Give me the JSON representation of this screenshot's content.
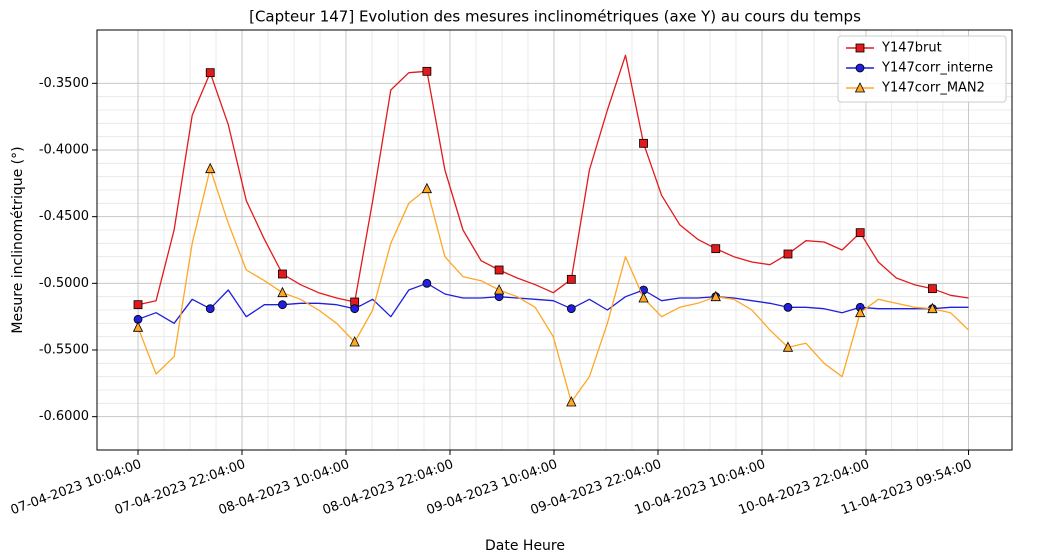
{
  "chart_data": {
    "type": "line",
    "title": "[Capteur 147] Evolution des mesures inclinométriques (axe Y) au cours du temps",
    "xlabel": "Date Heure",
    "ylabel": "Mesure inclinométrique (°)",
    "x": [
      "2023-04-07T10:04",
      "2023-04-07T12:09",
      "2023-04-07T14:14",
      "2023-04-07T16:19",
      "2023-04-07T18:24",
      "2023-04-07T20:29",
      "2023-04-07T22:34",
      "2023-04-08T00:39",
      "2023-04-08T02:44",
      "2023-04-08T04:49",
      "2023-04-08T06:54",
      "2023-04-08T08:59",
      "2023-04-08T11:04",
      "2023-04-08T13:09",
      "2023-04-08T15:14",
      "2023-04-08T17:19",
      "2023-04-08T19:24",
      "2023-04-08T21:29",
      "2023-04-08T23:34",
      "2023-04-09T01:39",
      "2023-04-09T03:44",
      "2023-04-09T05:49",
      "2023-04-09T07:54",
      "2023-04-09T09:59",
      "2023-04-09T12:04",
      "2023-04-09T14:09",
      "2023-04-09T16:14",
      "2023-04-09T18:19",
      "2023-04-09T20:24",
      "2023-04-09T22:29",
      "2023-04-10T00:34",
      "2023-04-10T02:39",
      "2023-04-10T04:44",
      "2023-04-10T06:49",
      "2023-04-10T08:54",
      "2023-04-10T10:59",
      "2023-04-10T13:04",
      "2023-04-10T15:09",
      "2023-04-10T17:14",
      "2023-04-10T19:19",
      "2023-04-10T21:24",
      "2023-04-10T23:29",
      "2023-04-11T01:34",
      "2023-04-11T03:39",
      "2023-04-11T05:44",
      "2023-04-11T07:49",
      "2023-04-11T09:54"
    ],
    "series": [
      {
        "name": "Y147brut",
        "color": "#e31a1c",
        "marker": "square",
        "values": [
          -0.516,
          -0.513,
          -0.46,
          -0.374,
          -0.342,
          -0.381,
          -0.438,
          -0.467,
          -0.493,
          -0.501,
          -0.507,
          -0.511,
          -0.514,
          -0.438,
          -0.355,
          -0.342,
          -0.341,
          -0.415,
          -0.46,
          -0.483,
          -0.49,
          -0.496,
          -0.501,
          -0.507,
          -0.497,
          -0.415,
          -0.37,
          -0.329,
          -0.395,
          -0.434,
          -0.456,
          -0.467,
          -0.474,
          -0.48,
          -0.484,
          -0.486,
          -0.478,
          -0.468,
          -0.469,
          -0.475,
          -0.462,
          -0.484,
          -0.496,
          -0.501,
          -0.504,
          -0.509,
          -0.511
        ]
      },
      {
        "name": "Y147corr_interne",
        "color": "#1f1fdd",
        "marker": "circle",
        "values": [
          -0.527,
          -0.522,
          -0.53,
          -0.512,
          -0.519,
          -0.505,
          -0.525,
          -0.516,
          -0.516,
          -0.515,
          -0.515,
          -0.516,
          -0.519,
          -0.512,
          -0.525,
          -0.505,
          -0.5,
          -0.508,
          -0.511,
          -0.511,
          -0.51,
          -0.511,
          -0.512,
          -0.513,
          -0.519,
          -0.512,
          -0.52,
          -0.51,
          -0.505,
          -0.513,
          -0.511,
          -0.511,
          -0.51,
          -0.511,
          -0.513,
          -0.515,
          -0.518,
          -0.518,
          -0.519,
          -0.522,
          -0.518,
          -0.519,
          -0.519,
          -0.519,
          -0.519,
          -0.518,
          -0.518
        ]
      },
      {
        "name": "Y147corr_MAN2",
        "color": "#ffa726",
        "marker": "triangle",
        "values": [
          -0.533,
          -0.568,
          -0.555,
          -0.47,
          -0.414,
          -0.455,
          -0.49,
          -0.498,
          -0.507,
          -0.512,
          -0.52,
          -0.53,
          -0.544,
          -0.52,
          -0.47,
          -0.44,
          -0.429,
          -0.48,
          -0.495,
          -0.498,
          -0.505,
          -0.51,
          -0.518,
          -0.54,
          -0.589,
          -0.57,
          -0.53,
          -0.48,
          -0.511,
          -0.525,
          -0.518,
          -0.515,
          -0.51,
          -0.512,
          -0.52,
          -0.535,
          -0.548,
          -0.545,
          -0.56,
          -0.57,
          -0.522,
          -0.512,
          -0.515,
          -0.518,
          -0.519,
          -0.522,
          -0.535
        ]
      }
    ],
    "markevery": 4,
    "xlim": [
      "2023-04-07T05:20",
      "2023-04-11T14:55"
    ],
    "xticks": [
      {
        "value": "2023-04-07T10:04",
        "label": "07-04-2023 10:04:00"
      },
      {
        "value": "2023-04-07T22:04",
        "label": "07-04-2023 22:04:00"
      },
      {
        "value": "2023-04-08T10:04",
        "label": "08-04-2023 10:04:00"
      },
      {
        "value": "2023-04-08T22:04",
        "label": "08-04-2023 22:04:00"
      },
      {
        "value": "2023-04-09T10:04",
        "label": "09-04-2023 10:04:00"
      },
      {
        "value": "2023-04-09T22:04",
        "label": "09-04-2023 22:04:00"
      },
      {
        "value": "2023-04-10T10:04",
        "label": "10-04-2023 10:04:00"
      },
      {
        "value": "2023-04-10T22:04",
        "label": "10-04-2023 22:04:00"
      },
      {
        "value": "2023-04-11T09:54",
        "label": "11-04-2023 09:54:00"
      }
    ],
    "ylim": [
      -0.625,
      -0.31
    ],
    "yticks": [
      {
        "value": -0.35,
        "label": "-0.3500"
      },
      {
        "value": -0.4,
        "label": "-0.4000"
      },
      {
        "value": -0.45,
        "label": "-0.4500"
      },
      {
        "value": -0.5,
        "label": "-0.5000"
      },
      {
        "value": -0.55,
        "label": "-0.5500"
      },
      {
        "value": -0.6,
        "label": "-0.6000"
      }
    ],
    "grid": true,
    "minor_grid": true,
    "legend": "upper right"
  }
}
